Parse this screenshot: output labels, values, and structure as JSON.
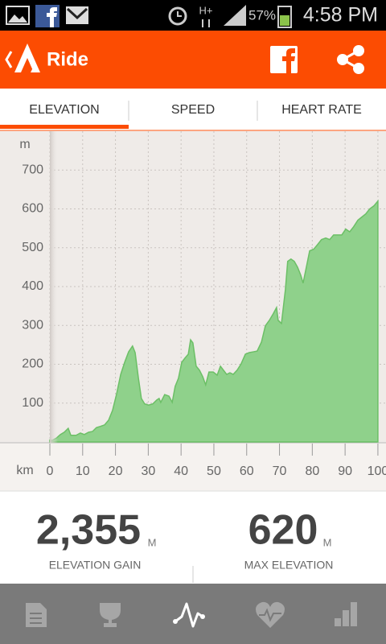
{
  "status_bar": {
    "network": "H+",
    "battery": "57%",
    "time": "4:58 PM"
  },
  "app_bar": {
    "title": "Ride"
  },
  "tabs": [
    "ELEVATION",
    "SPEED",
    "HEART RATE"
  ],
  "chart_data": {
    "type": "area",
    "y_label": "m",
    "x_label": "km",
    "color": "#8fd18b",
    "grid": true,
    "x": [
      0,
      0.7,
      2,
      3.2,
      4.4,
      5.6,
      6.4,
      8,
      9.3,
      10.5,
      11.8,
      13,
      14.2,
      15.4,
      16.7,
      17.9,
      19.1,
      20.3,
      21.6,
      22.8,
      24,
      25.2,
      26,
      27,
      27.9,
      28.9,
      30.1,
      31.4,
      32.6,
      33.3,
      33.8,
      35,
      36.3,
      37.3,
      38.2,
      39.2,
      40.2,
      41.2,
      42.2,
      42.9,
      43.6,
      44.6,
      45.6,
      46.6,
      47.5,
      48.5,
      49.8,
      51,
      52,
      52.9,
      53.9,
      54.9,
      55.9,
      57.1,
      58.3,
      59.6,
      60.8,
      62,
      63.2,
      64.5,
      65.7,
      66.9,
      68.1,
      69.1,
      69.6,
      70.6,
      71.8,
      72.5,
      73.5,
      74.5,
      75.5,
      76.5,
      77.2,
      77.9,
      79.2,
      80.4,
      81.6,
      82.8,
      84.1,
      85.3,
      86.5,
      87.7,
      89,
      90.2,
      91.4,
      92.6,
      93.9,
      95.1,
      96.3,
      97.5,
      98.8,
      100
    ],
    "values": [
      5,
      4,
      10,
      19,
      25,
      35,
      17,
      17,
      23,
      19,
      25,
      27,
      37,
      40,
      44,
      56,
      81,
      122,
      174,
      205,
      232,
      247,
      230,
      164,
      112,
      98,
      95,
      98,
      108,
      112,
      102,
      122,
      118,
      102,
      143,
      164,
      205,
      216,
      226,
      263,
      255,
      195,
      185,
      168,
      147,
      180,
      180,
      172,
      195,
      185,
      174,
      178,
      174,
      185,
      201,
      226,
      230,
      232,
      234,
      257,
      299,
      313,
      330,
      346,
      313,
      305,
      392,
      465,
      471,
      465,
      450,
      429,
      409,
      438,
      492,
      496,
      508,
      521,
      525,
      521,
      533,
      533,
      533,
      548,
      541,
      554,
      571,
      579,
      587,
      600,
      608,
      620
    ],
    "xlim": [
      0,
      101
    ],
    "ylim": [
      0,
      800
    ],
    "xticks": [
      0,
      10,
      20,
      30,
      40,
      50,
      60,
      70,
      80,
      90,
      100
    ],
    "yticks": [
      100,
      200,
      300,
      400,
      500,
      600,
      700
    ]
  },
  "stats": [
    {
      "value": "2,355",
      "unit": "M",
      "label": "ELEVATION GAIN"
    },
    {
      "value": "620",
      "unit": "M",
      "label": "MAX ELEVATION"
    }
  ]
}
